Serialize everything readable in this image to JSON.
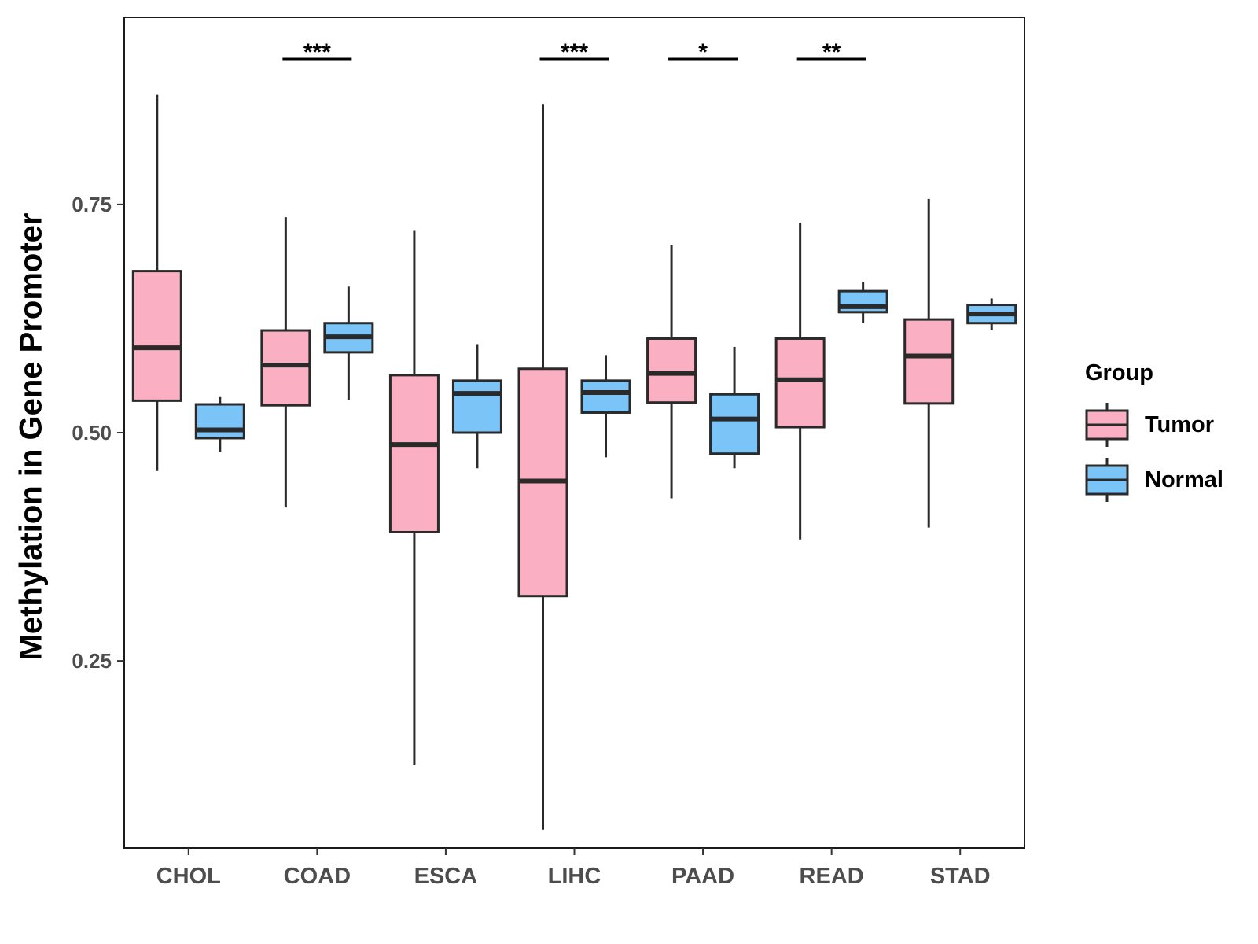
{
  "chart_data": {
    "type": "boxplot",
    "title": "",
    "xlabel": "",
    "ylabel": "Methylation in Gene Promoter",
    "ylim": [
      0.045,
      0.955
    ],
    "yticks": [
      0.25,
      0.5,
      0.75
    ],
    "ytick_labels": [
      "0.25",
      "0.50",
      "0.75"
    ],
    "categories": [
      "CHOL",
      "COAD",
      "ESCA",
      "LIHC",
      "PAAD",
      "READ",
      "STAD"
    ],
    "legend": {
      "title": "Group",
      "position": "right",
      "entries": [
        "Tumor",
        "Normal"
      ]
    },
    "series": [
      {
        "name": "Tumor",
        "color": "#FAB0C2",
        "boxes": [
          {
            "min": 0.458,
            "q1": 0.535,
            "median": 0.593,
            "q3": 0.677,
            "max": 0.87
          },
          {
            "min": 0.418,
            "q1": 0.53,
            "median": 0.574,
            "q3": 0.612,
            "max": 0.736
          },
          {
            "min": 0.136,
            "q1": 0.391,
            "median": 0.487,
            "q3": 0.563,
            "max": 0.721
          },
          {
            "min": 0.065,
            "q1": 0.321,
            "median": 0.447,
            "q3": 0.57,
            "max": 0.86
          },
          {
            "min": 0.428,
            "q1": 0.533,
            "median": 0.565,
            "q3": 0.603,
            "max": 0.706
          },
          {
            "min": 0.383,
            "q1": 0.506,
            "median": 0.558,
            "q3": 0.603,
            "max": 0.73
          },
          {
            "min": 0.396,
            "q1": 0.532,
            "median": 0.584,
            "q3": 0.624,
            "max": 0.756
          }
        ]
      },
      {
        "name": "Normal",
        "color": "#7AC4F8",
        "boxes": [
          {
            "min": 0.479,
            "q1": 0.494,
            "median": 0.503,
            "q3": 0.531,
            "max": 0.539
          },
          {
            "min": 0.536,
            "q1": 0.588,
            "median": 0.605,
            "q3": 0.62,
            "max": 0.66
          },
          {
            "min": 0.461,
            "q1": 0.5,
            "median": 0.543,
            "q3": 0.557,
            "max": 0.597
          },
          {
            "min": 0.473,
            "q1": 0.522,
            "median": 0.544,
            "q3": 0.557,
            "max": 0.585
          },
          {
            "min": 0.461,
            "q1": 0.477,
            "median": 0.515,
            "q3": 0.542,
            "max": 0.594
          },
          {
            "min": 0.62,
            "q1": 0.632,
            "median": 0.638,
            "q3": 0.655,
            "max": 0.665
          },
          {
            "min": 0.612,
            "q1": 0.62,
            "median": 0.63,
            "q3": 0.64,
            "max": 0.647
          }
        ]
      }
    ],
    "annotations": [
      {
        "category": "COAD",
        "label": "***"
      },
      {
        "category": "LIHC",
        "label": "***"
      },
      {
        "category": "PAAD",
        "label": "*"
      },
      {
        "category": "READ",
        "label": "**"
      }
    ]
  }
}
